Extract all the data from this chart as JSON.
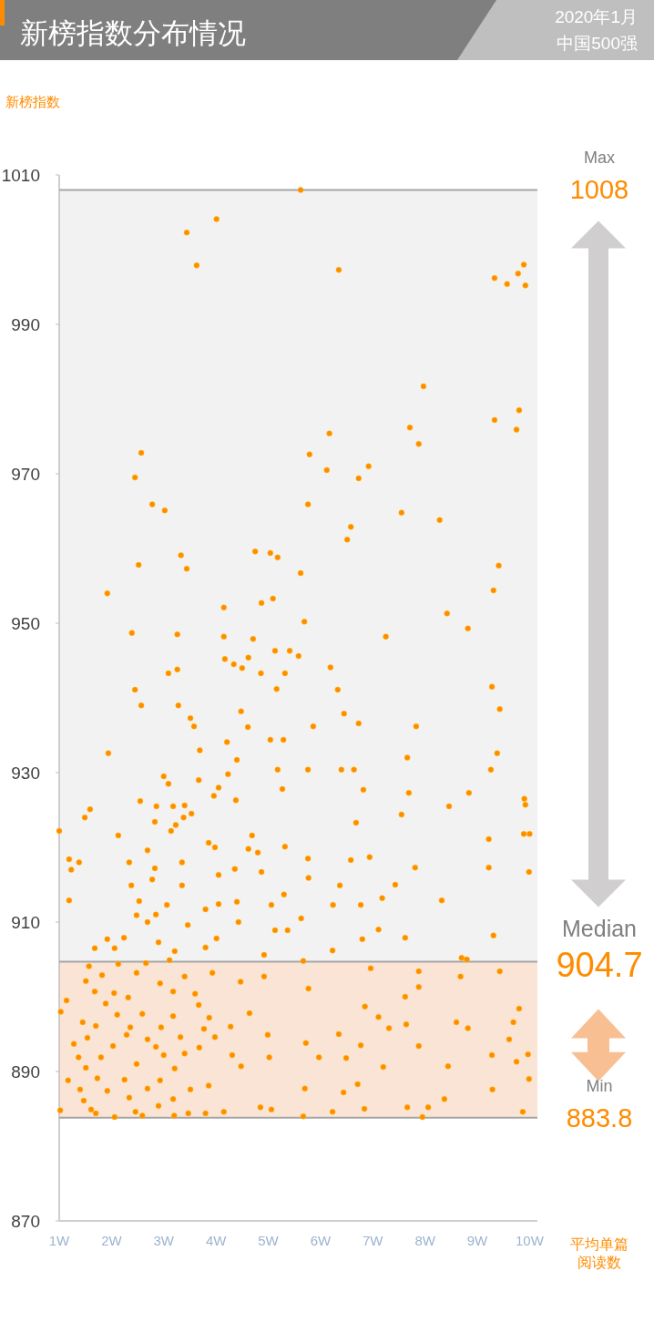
{
  "chart_data": {
    "type": "scatter",
    "title": "新榜指数分布情况",
    "subtitle": "2020年1月",
    "annotations": [
      "中国500强",
      "Max",
      "1008",
      "Median",
      "904.7",
      "Min",
      "883.8"
    ],
    "ylabel": "新榜指数",
    "xlabel": "平均单篇阅读数",
    "xlim": [
      1,
      10.15
    ],
    "ylim": [
      870,
      1010
    ],
    "xticks": [
      {
        "value": 1,
        "label": "1W"
      },
      {
        "value": 2,
        "label": "2W"
      },
      {
        "value": 3,
        "label": "3W"
      },
      {
        "value": 4,
        "label": "4W"
      },
      {
        "value": 5,
        "label": "5W"
      },
      {
        "value": 6,
        "label": "6W"
      },
      {
        "value": 7,
        "label": "7W"
      },
      {
        "value": 8,
        "label": "8W"
      },
      {
        "value": 9,
        "label": "9W"
      },
      {
        "value": 10,
        "label": "10W"
      }
    ],
    "yticks": [
      870,
      890,
      910,
      930,
      950,
      970,
      990,
      1010
    ],
    "grid": false,
    "marker": "circle",
    "bands": [
      {
        "axis": "y",
        "from": 904.7,
        "to": 1008,
        "color": "#f2f2f2"
      },
      {
        "axis": "y",
        "from": 883.8,
        "to": 904.7,
        "color": "#fae4d6"
      }
    ],
    "ref_lines": [
      {
        "axis": "y",
        "value": 1008,
        "color": "#a6a6a6"
      },
      {
        "axis": "y",
        "value": 904.7,
        "color": "#a6a6a6"
      },
      {
        "axis": "y",
        "value": 883.8,
        "color": "#a6a6a6"
      }
    ],
    "series": [
      {
        "color": "#ff8c00",
        "x": [
          5.62,
          4.01,
          3.44,
          3.63,
          6.35,
          9.89,
          9.33,
          9.57,
          9.78,
          9.92,
          7.97,
          9.8,
          9.33,
          9.75,
          7.71,
          7.88,
          6.17,
          2.57,
          5.79,
          6.12,
          2.45,
          6.73,
          6.92,
          2.78,
          3.02,
          5.76,
          7.55,
          8.28,
          6.58,
          6.51,
          3.33,
          4.75,
          5.04,
          5.18,
          2.52,
          3.44,
          9.41,
          5.62,
          1.92,
          9.31,
          4.15,
          4.87,
          5.09,
          8.42,
          5.69,
          8.82,
          2.39,
          3.26,
          4.15,
          4.71,
          7.25,
          5.13,
          5.41,
          4.17,
          4.34,
          4.62,
          4.5,
          5.58,
          3.26,
          3.09,
          4.86,
          5.32,
          6.19,
          5.16,
          6.33,
          2.45,
          9.28,
          2.57,
          3.28,
          9.43,
          4.48,
          3.51,
          6.45,
          3.58,
          5.86,
          6.73,
          7.83,
          4.61,
          1.94,
          3.69,
          9.38,
          7.66,
          4.4,
          5.04,
          5.29,
          4.21,
          5.18,
          5.76,
          6.4,
          6.64,
          9.26,
          3.0,
          4.23,
          3.67,
          3.09,
          4.05,
          3.96,
          5.27,
          6.82,
          7.69,
          8.84,
          2.55,
          2.86,
          3.18,
          3.4,
          1.59,
          4.38,
          8.46,
          9.9,
          9.92,
          6.68,
          7.55,
          1.49,
          3.38,
          3.53,
          2.83,
          3.23,
          3.14,
          1.0,
          2.13,
          9.89,
          10.0,
          3.86,
          4.69,
          9.22,
          2.69,
          3.98,
          4.62,
          4.8,
          5.32,
          1.19,
          1.38,
          2.34,
          3.35,
          5.76,
          6.58,
          6.94,
          7.81,
          9.22,
          9.99,
          1.23,
          2.83,
          4.36,
          4.87,
          2.78,
          4.05,
          6.37,
          7.43,
          2.38,
          3.35,
          5.3,
          5.77,
          8.32,
          3.06,
          4.05,
          5.06,
          1.19,
          7.18,
          2.53,
          3.8,
          4.4,
          6.24,
          6.77,
          2.48,
          2.85,
          2.69,
          3.46,
          4.43,
          5.63,
          5.13,
          5.37,
          7.11,
          7.62,
          1.92,
          2.24,
          2.9,
          4.01,
          6.8,
          9.31,
          1.68,
          2.06,
          3.21,
          3.8,
          6.23,
          4.92,
          8.7,
          8.8,
          1.57,
          2.13,
          2.66,
          3.11,
          5.67,
          7.88,
          9.43,
          6.96,
          1.82,
          2.48,
          3.4,
          3.93,
          4.92,
          8.68,
          1.51,
          2.93,
          4.47,
          5.77,
          7.88,
          1.68,
          2.05,
          3.18,
          3.6,
          2.32,
          1.14,
          1.89,
          3.67,
          7.62,
          6.85,
          1.03,
          9.8,
          2.11,
          2.59,
          3.18,
          3.87,
          4.64,
          7.11,
          8.6,
          9.69,
          1.45,
          7.64,
          1.7,
          2.36,
          2.95,
          3.77,
          4.28,
          7.31,
          8.82,
          6.35,
          1.54,
          2.29,
          2.69,
          3.32,
          3.98,
          4.99,
          9.61,
          1.28,
          2.03,
          2.85,
          3.68,
          5.72,
          6.77,
          7.88,
          1.37,
          1.8,
          3.0,
          3.4,
          4.31,
          5.02,
          5.97,
          6.49,
          9.28,
          9.97,
          1.51,
          2.48,
          3.21,
          4.48,
          7.2,
          8.44,
          9.75,
          1.17,
          1.73,
          2.25,
          2.93,
          3.86,
          6.71,
          9.99,
          1.4,
          1.92,
          2.69,
          3.51,
          5.7,
          6.44,
          9.29,
          1.47,
          2.34,
          3.18,
          8.37,
          1.02,
          1.61,
          2.46,
          2.9,
          4.85,
          5.06,
          6.84,
          7.66,
          8.06,
          9.87,
          1.7,
          2.06,
          2.59,
          3.2,
          3.47,
          3.8,
          4.15,
          5.67,
          6.23,
          7.95
        ],
        "values": [
          1008.0,
          1004.1,
          1002.3,
          997.9,
          997.3,
          998.0,
          996.2,
          995.4,
          996.8,
          995.2,
          981.7,
          978.5,
          977.2,
          975.9,
          976.2,
          974.0,
          975.4,
          972.8,
          972.6,
          970.5,
          969.5,
          969.4,
          971.0,
          965.9,
          965.1,
          965.9,
          964.8,
          963.8,
          962.9,
          961.2,
          959.1,
          959.6,
          959.4,
          958.8,
          957.8,
          957.3,
          957.7,
          956.7,
          954.0,
          954.4,
          952.1,
          952.7,
          953.3,
          951.3,
          950.2,
          949.3,
          948.7,
          948.5,
          948.2,
          947.9,
          948.2,
          946.3,
          946.3,
          945.2,
          944.5,
          945.4,
          944.0,
          945.6,
          943.8,
          943.3,
          943.3,
          943.3,
          944.1,
          941.2,
          941.1,
          941.1,
          941.5,
          939.0,
          939.0,
          938.5,
          938.2,
          937.3,
          937.9,
          936.2,
          936.2,
          936.6,
          936.2,
          936.1,
          932.6,
          933.0,
          932.6,
          932.0,
          931.7,
          934.4,
          934.4,
          934.1,
          930.4,
          930.4,
          930.4,
          930.4,
          930.4,
          929.5,
          929.8,
          929.0,
          928.5,
          928.0,
          926.9,
          927.8,
          927.7,
          927.3,
          927.3,
          926.2,
          925.5,
          925.5,
          925.6,
          925.1,
          926.3,
          925.5,
          926.5,
          925.7,
          923.3,
          924.4,
          924.0,
          924.0,
          924.5,
          923.4,
          923.0,
          922.2,
          922.2,
          921.6,
          921.8,
          921.8,
          920.6,
          921.6,
          921.1,
          919.6,
          920.0,
          919.8,
          919.3,
          920.1,
          918.4,
          918.0,
          918.0,
          918.0,
          918.5,
          918.3,
          918.7,
          917.3,
          917.3,
          916.7,
          917.0,
          917.2,
          917.1,
          916.7,
          915.7,
          916.3,
          914.9,
          915.0,
          914.9,
          914.9,
          913.7,
          915.9,
          912.9,
          912.3,
          912.4,
          912.3,
          912.9,
          913.2,
          912.8,
          911.7,
          912.7,
          912.3,
          912.3,
          910.9,
          911.0,
          910.0,
          909.6,
          910.0,
          910.5,
          908.9,
          908.9,
          909.0,
          907.9,
          907.7,
          907.9,
          907.3,
          907.8,
          907.7,
          908.2,
          906.5,
          906.5,
          906.1,
          906.6,
          906.2,
          905.6,
          905.2,
          905.0,
          904.1,
          904.4,
          904.5,
          904.9,
          904.8,
          903.4,
          903.4,
          903.8,
          902.9,
          903.2,
          902.7,
          903.2,
          902.7,
          902.7,
          902.1,
          901.8,
          902.0,
          901.1,
          901.3,
          900.7,
          900.5,
          900.7,
          900.4,
          899.9,
          899.5,
          899.1,
          898.9,
          900.0,
          898.7,
          898.0,
          898.4,
          897.6,
          897.7,
          897.4,
          897.2,
          897.8,
          897.3,
          896.6,
          896.6,
          896.6,
          896.3,
          896.1,
          895.9,
          895.9,
          895.7,
          896.0,
          895.8,
          895.8,
          895.0,
          894.5,
          894.9,
          894.3,
          894.6,
          894.6,
          894.9,
          894.3,
          893.7,
          893.4,
          893.3,
          893.2,
          893.8,
          893.5,
          893.4,
          891.9,
          891.9,
          892.2,
          892.4,
          892.2,
          891.9,
          891.9,
          891.8,
          892.2,
          892.3,
          890.5,
          891.0,
          890.4,
          890.7,
          890.6,
          890.7,
          891.3,
          888.8,
          889.1,
          888.9,
          888.8,
          888.1,
          888.3,
          889.0,
          887.6,
          887.4,
          887.7,
          887.6,
          887.7,
          887.2,
          887.6,
          886.1,
          886.5,
          886.3,
          886.3,
          884.8,
          884.9,
          884.6,
          885.4,
          885.2,
          884.9,
          885.0,
          885.2,
          885.2,
          884.6,
          884.4,
          883.9,
          884.1,
          884.1,
          884.4,
          884.4,
          884.6,
          884.0,
          884.6,
          883.9
        ]
      }
    ]
  }
}
